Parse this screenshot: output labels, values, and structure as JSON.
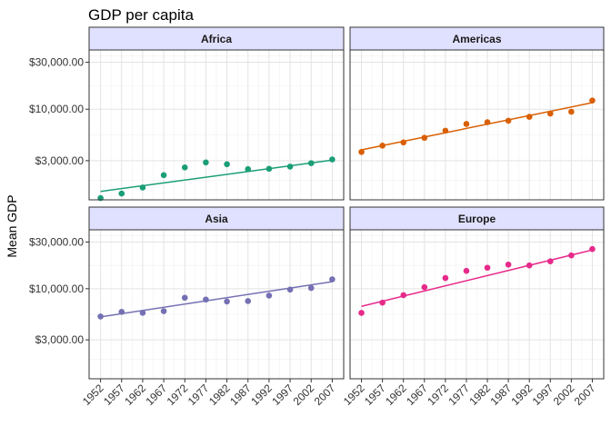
{
  "chart_data": {
    "type": "scatter",
    "title": "GDP per capita",
    "xlabel": "",
    "ylabel": "Mean GDP",
    "y_scale": "log10",
    "ylim": [
      1200,
      40000
    ],
    "y_ticks": [
      3000,
      10000,
      30000
    ],
    "y_tick_labels": [
      "$3,000.00",
      "$10,000.00",
      "$30,000.00"
    ],
    "x": [
      1952,
      1957,
      1962,
      1967,
      1972,
      1977,
      1982,
      1987,
      1992,
      1997,
      2002,
      2007
    ],
    "x_tick_labels": [
      "1952",
      "1957",
      "1962",
      "1967",
      "1972",
      "1977",
      "1982",
      "1987",
      "1992",
      "1997",
      "2002",
      "2007"
    ],
    "grid": true,
    "trend": "linear fit per panel",
    "panels": [
      {
        "name": "Africa",
        "color": "#1b9e77",
        "values": [
          1250,
          1390,
          1600,
          2140,
          2560,
          2880,
          2760,
          2460,
          2480,
          2610,
          2830,
          3090
        ],
        "trend_line": [
          1460,
          3040
        ]
      },
      {
        "name": "Americas",
        "color": "#d95f02",
        "values": [
          3680,
          4270,
          4600,
          5120,
          6050,
          7080,
          7380,
          7640,
          8370,
          9040,
          9430,
          12250
        ],
        "trend_line": [
          3860,
          11650
        ]
      },
      {
        "name": "Asia",
        "color": "#7570b3",
        "values": [
          5200,
          5800,
          5670,
          5900,
          8090,
          7750,
          7400,
          7470,
          8500,
          9800,
          10170,
          12470
        ],
        "trend_line": [
          5150,
          11800
        ]
      },
      {
        "name": "Europe",
        "color": "#e7298a",
        "values": [
          5660,
          7200,
          8590,
          10350,
          12850,
          15220,
          16380,
          17650,
          17300,
          19050,
          21900,
          25410
        ],
        "trend_line": [
          6600,
          24900
        ]
      }
    ]
  }
}
